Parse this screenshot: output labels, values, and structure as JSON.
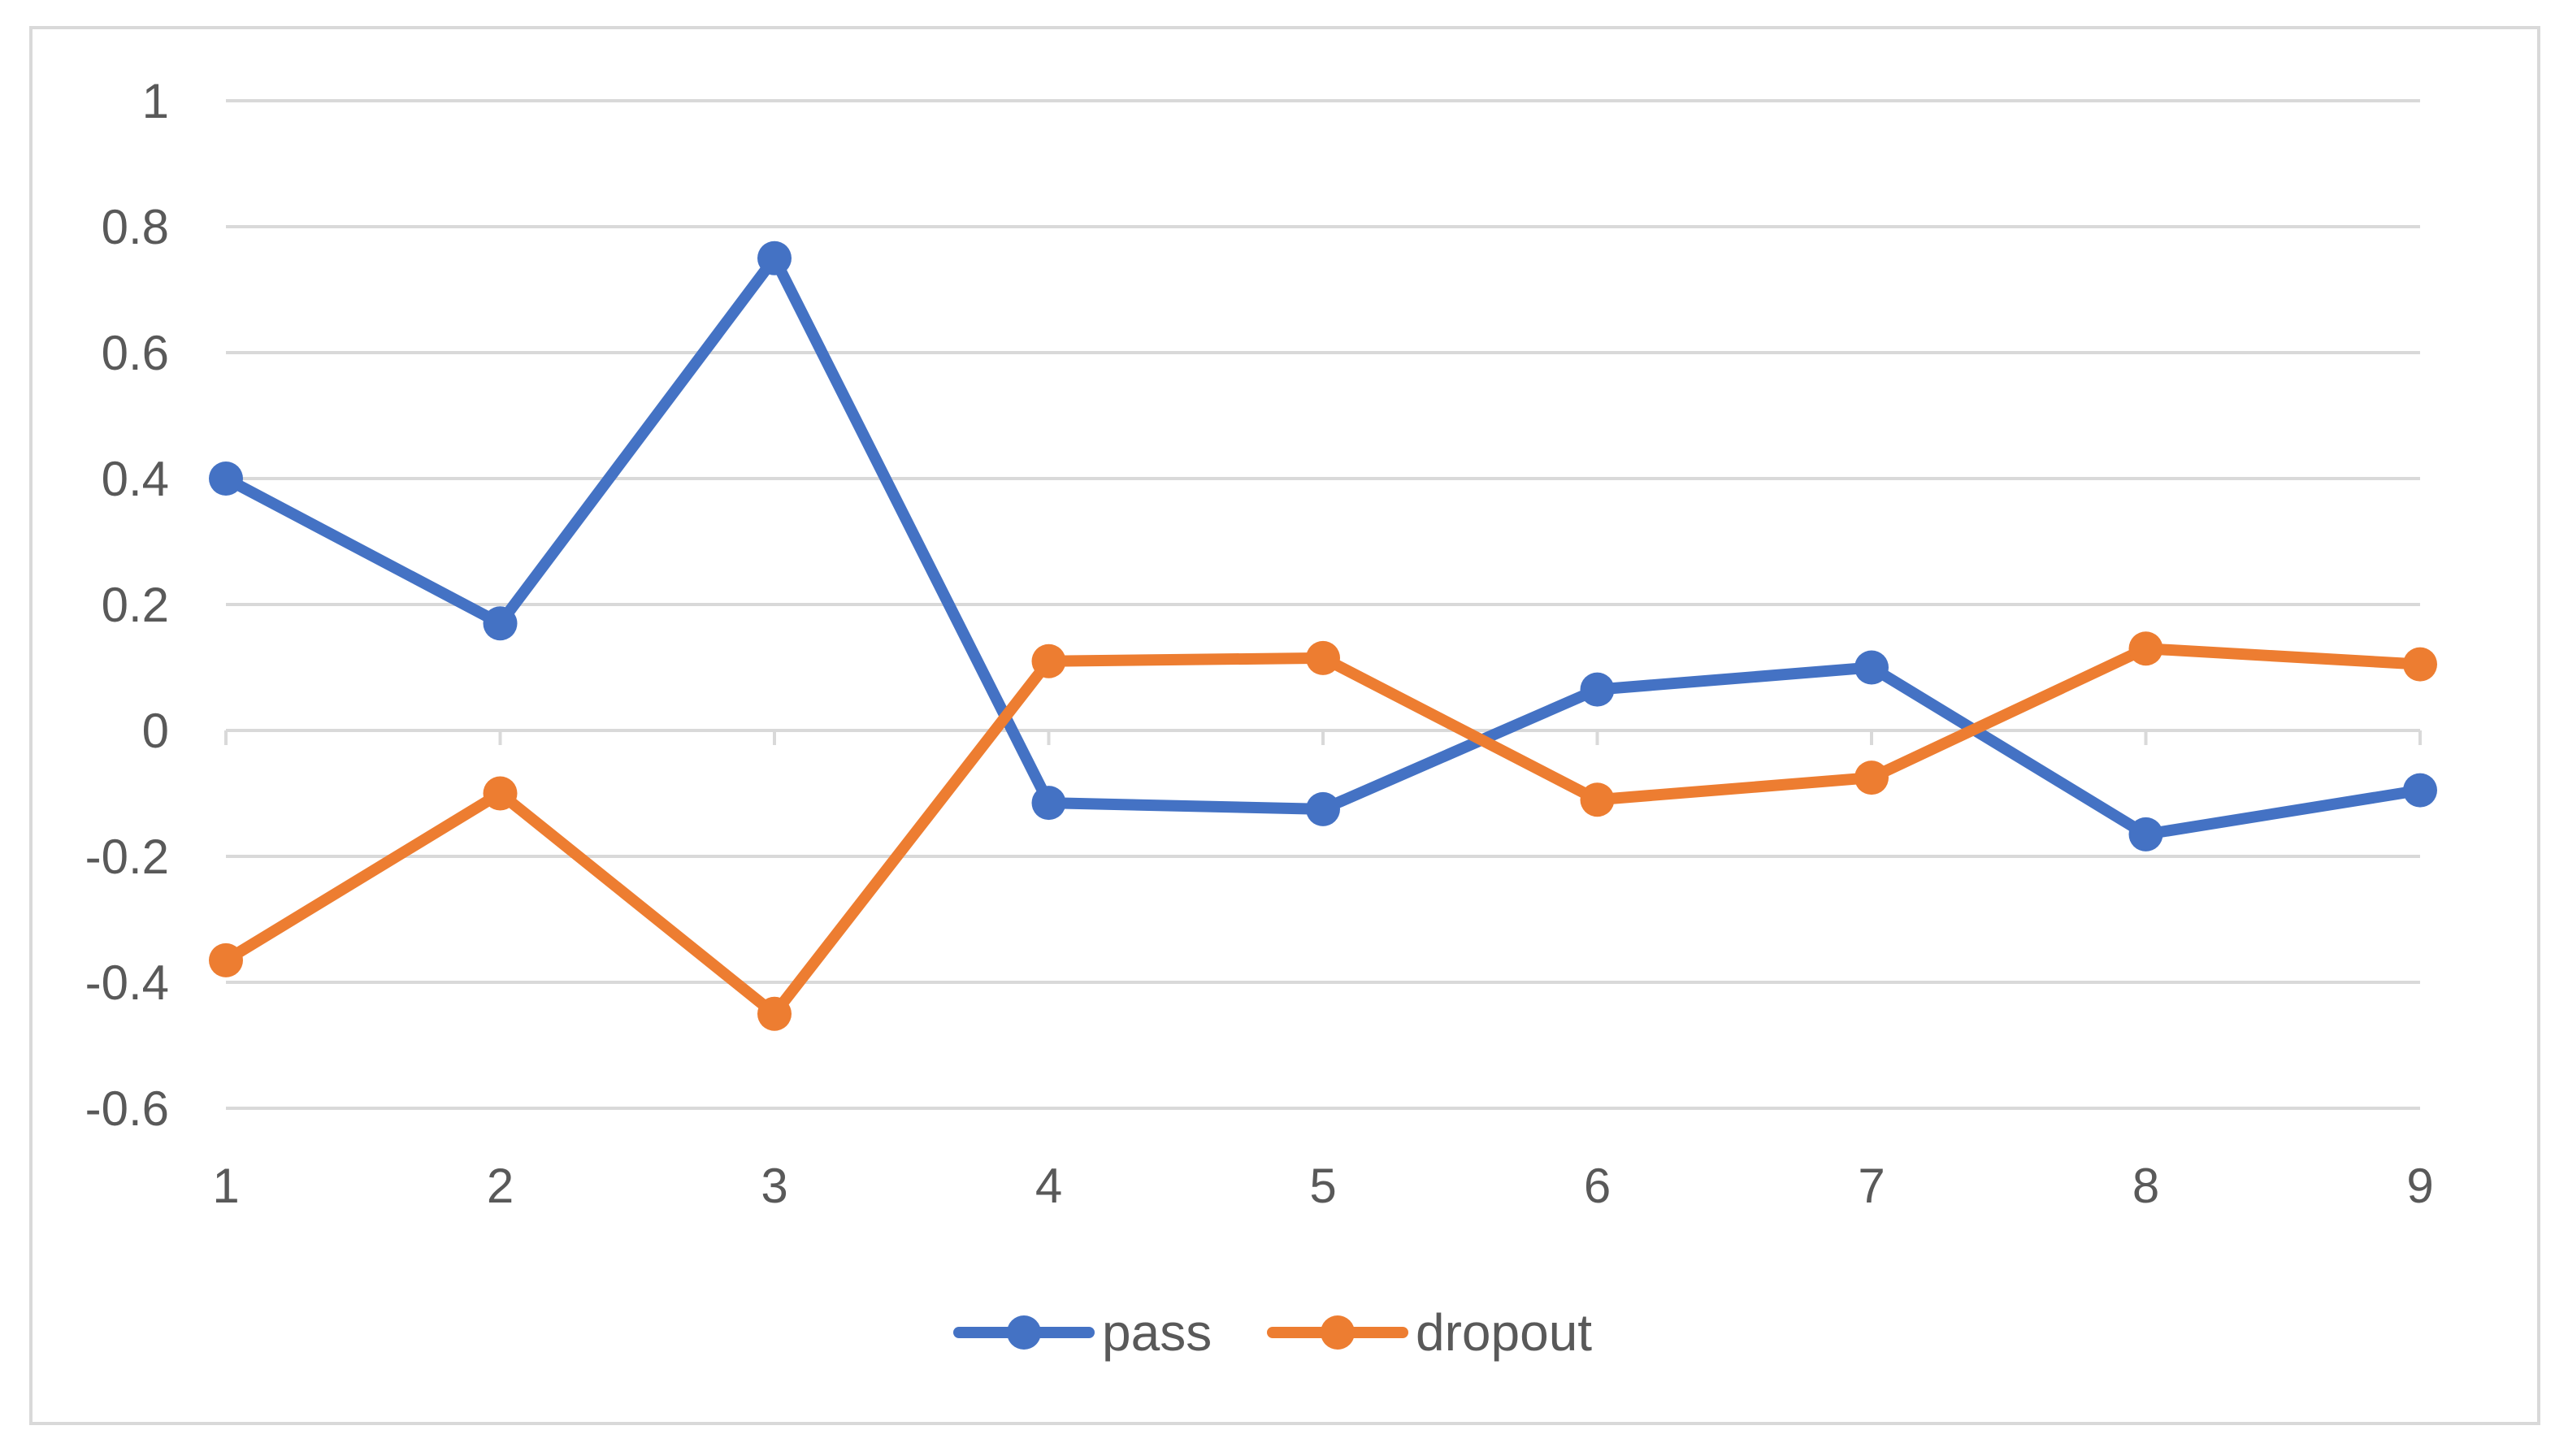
{
  "chart_data": {
    "type": "line",
    "title": "",
    "xlabel": "",
    "ylabel": "",
    "categories": [
      "1",
      "2",
      "3",
      "4",
      "5",
      "6",
      "7",
      "8",
      "9"
    ],
    "ylim": [
      -0.6,
      1
    ],
    "yticks": [
      "1",
      "0.8",
      "0.6",
      "0.4",
      "0.2",
      "0",
      "-0.2",
      "-0.4",
      "-0.6"
    ],
    "ytick_values": [
      1,
      0.8,
      0.6,
      0.4,
      0.2,
      0,
      -0.2,
      -0.4,
      -0.6
    ],
    "grid": true,
    "legend_position": "bottom",
    "series": [
      {
        "name": "pass",
        "color": "#4472c4",
        "values": [
          0.4,
          0.17,
          0.75,
          -0.115,
          -0.125,
          0.065,
          0.1,
          -0.165,
          -0.095
        ]
      },
      {
        "name": "dropout",
        "color": "#ed7d31",
        "values": [
          -0.365,
          -0.1,
          -0.45,
          0.11,
          0.115,
          -0.11,
          -0.075,
          0.13,
          0.105
        ]
      }
    ]
  }
}
